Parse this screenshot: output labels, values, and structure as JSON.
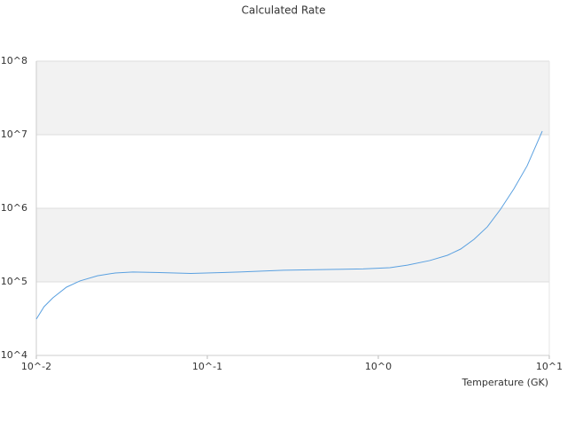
{
  "chart_data": {
    "type": "line",
    "title": "Calculated Rate",
    "x_label": "Temperature (GK)",
    "x": [
      0.01,
      0.0111,
      0.0125,
      0.015,
      0.018,
      0.0228,
      0.0289,
      0.0367,
      0.0525,
      0.08,
      0.154,
      0.279,
      0.57,
      0.816,
      1.17,
      1.48,
      2.0,
      2.54,
      3.03,
      3.63,
      4.34,
      5.19,
      6.21,
      7.42,
      9.1
    ],
    "values": [
      31200,
      46000,
      60700,
      84700,
      103000,
      121000,
      132000,
      136000,
      134000,
      130000,
      136000,
      144000,
      148000,
      150000,
      156000,
      169000,
      195000,
      230000,
      279000,
      379000,
      559000,
      972000,
      1840000,
      3780000,
      11200000
    ],
    "color": "#5aa0e0",
    "xlog": true,
    "ylog": true,
    "grid": true,
    "xlim": [
      0.01,
      10
    ],
    "ylim": [
      10000,
      100000000
    ],
    "xticks": [
      {
        "value": 0.01,
        "label": "10^-2"
      },
      {
        "value": 0.1,
        "label": "10^-1"
      },
      {
        "value": 1,
        "label": "10^0"
      },
      {
        "value": 10,
        "label": "10^1"
      }
    ],
    "yticks": [
      {
        "value": 10000,
        "label": "10^4"
      },
      {
        "value": 100000,
        "label": "10^5"
      },
      {
        "value": 1000000,
        "label": "10^6"
      },
      {
        "value": 10000000,
        "label": "10^7"
      },
      {
        "value": 100000000,
        "label": "10^8"
      }
    ]
  }
}
